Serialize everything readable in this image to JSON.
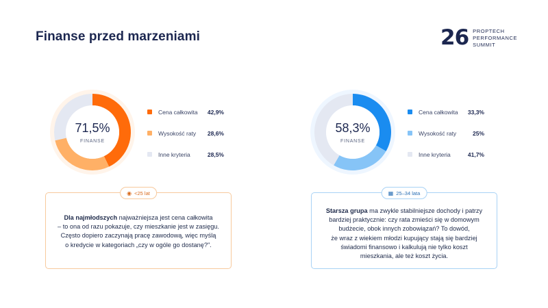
{
  "header": {
    "title": "Finanse przed marzeniami",
    "logo_mark": "26",
    "logo_lines": [
      "PROPTECH",
      "PERFORMANCE",
      "SUMMIT"
    ]
  },
  "chart_data": [
    {
      "type": "pie",
      "center_value": "71,5%",
      "center_label": "FINANSE",
      "slices": [
        {
          "label": "Cena całkowita",
          "value": 42.9,
          "display": "42,9%",
          "color": "#ff6b0a"
        },
        {
          "label": "Wysokość raty",
          "value": 28.6,
          "display": "28,6%",
          "color": "#ffb066"
        },
        {
          "label": "Inne kryteria",
          "value": 28.5,
          "display": "28,5%",
          "color": "#e4e8f2"
        }
      ]
    },
    {
      "type": "pie",
      "center_value": "58,3%",
      "center_label": "FINANSE",
      "slices": [
        {
          "label": "Cena całkowita",
          "value": 33.3,
          "display": "33,3%",
          "color": "#1a8cf0"
        },
        {
          "label": "Wysokość raty",
          "value": 25,
          "display": "25%",
          "color": "#86c4f7"
        },
        {
          "label": "Inne kryteria",
          "value": 41.7,
          "display": "41,7%",
          "color": "#e4e8f2"
        }
      ]
    }
  ],
  "notes": {
    "left": {
      "badge": "<25 lat",
      "bold": "Dla najmłodszych",
      "lines": [
        " najważniejsza jest cena całkowita",
        "– to ona od razu pokazuje, czy mieszkanie jest w zasięgu.",
        "Często dopiero  zaczynają pracę zawodową, więc myślą",
        "o kredycie w kategoriach „czy w  ogóle go dostanę?\"."
      ]
    },
    "right": {
      "badge": "25–34 lata",
      "bold": "Starsza grupa",
      "lines": [
        " ma zwykle stabilniejsze dochody i patrzy",
        "bardziej praktycznie: czy rata  zmieści się w domowym",
        "budżecie, obok innych zobowiązań? To dowód,",
        "że wraz z wiekiem młodzi kupujący stają się bardziej",
        "świadomi finansowo i  kalkulują nie tylko koszt",
        "mieszkania, ale też koszt życia."
      ]
    }
  }
}
